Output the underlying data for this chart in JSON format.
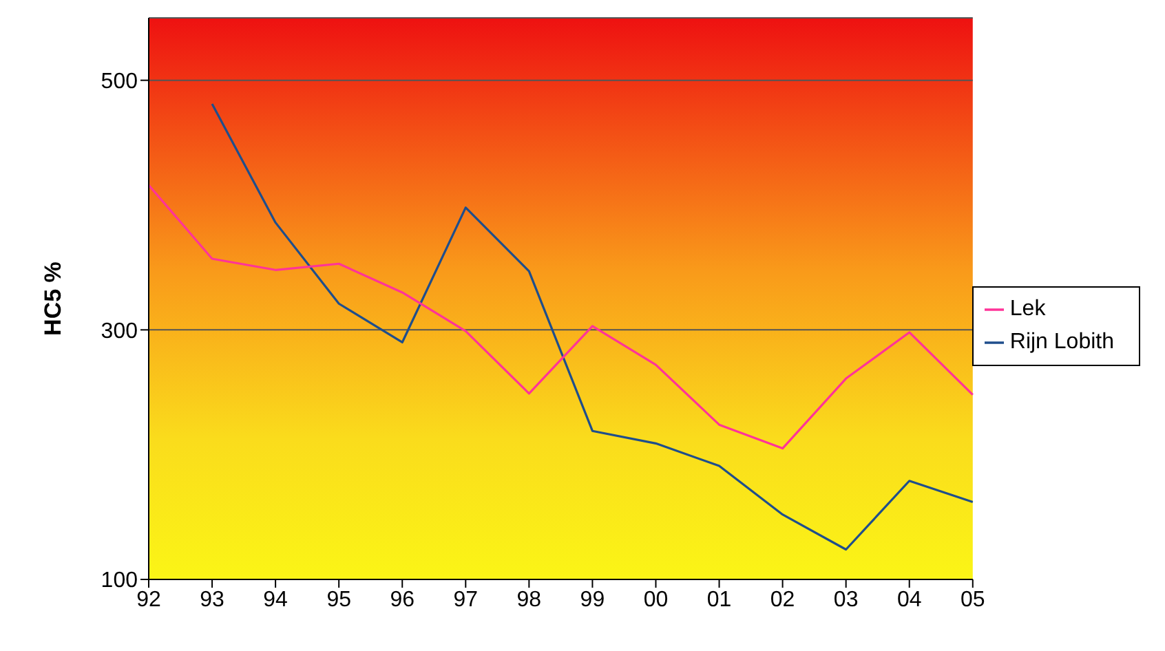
{
  "chart_data": {
    "type": "line",
    "ylabel": "HC5 %",
    "categories": [
      "92",
      "93",
      "94",
      "95",
      "96",
      "97",
      "98",
      "99",
      "00",
      "01",
      "02",
      "03",
      "04",
      "05"
    ],
    "series": [
      {
        "name": "Rijn Lobith",
        "color": "#1f4e8c",
        "values": [
          null,
          481,
          386,
          321,
          290,
          398,
          347,
          219,
          209,
          191,
          152,
          124,
          179,
          162
        ]
      },
      {
        "name": "Lek",
        "color": "#ff3399",
        "values": [
          416,
          357,
          348,
          353,
          330,
          299,
          249,
          303,
          272,
          224,
          205,
          261,
          298,
          248
        ]
      }
    ],
    "ylim": [
      100,
      550
    ],
    "yticks": [
      100,
      300,
      500
    ],
    "grid": "y",
    "legend": "right",
    "marker": "none",
    "line_style": "solid"
  }
}
